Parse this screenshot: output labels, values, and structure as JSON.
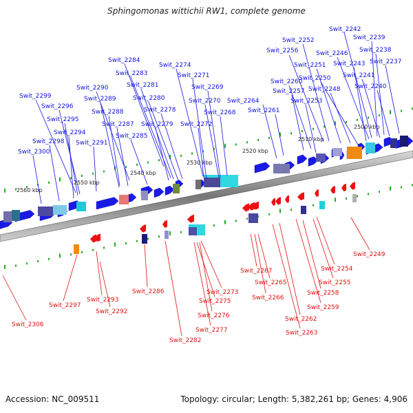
{
  "title": "Sphingomonas wittichii RW1, complete genome",
  "footer": {
    "accession": "Accession: NC_009511",
    "topology": "Topology: circular; Length: 5,382,261 bp; Genes: 4,906"
  },
  "scale_labels": [
    "2500 kbp",
    "2510 kbp",
    "2520 kbp",
    "2530 kbp",
    "2540 kbp",
    "2550 kbp",
    "2560 kbp"
  ],
  "top_labels": [
    "Swit_2242",
    "Swit_2239",
    "Swit_2252",
    "Swit_2238",
    "Swit_2256",
    "Swit_2246",
    "Swit_2237",
    "Swit_2243",
    "Swit_2251",
    "Swit_2241",
    "Swit_2250",
    "Swit_2260",
    "Swit_2240",
    "Swit_2248",
    "Swit_2257",
    "Swit_2253",
    "Swit_2264",
    "Swit_2261",
    "Swit_2284",
    "Swit_2274",
    "Swit_2283",
    "Swit_2271",
    "Swit_2281",
    "Swit_2269",
    "Swit_2290",
    "Swit_2280",
    "Swit_2270",
    "Swit_2299",
    "Swit_2289",
    "Swit_2278",
    "Swit_2268",
    "Swit_2296",
    "Swit_2288",
    "Swit_2295",
    "Swit_2287",
    "Swit_2279",
    "Swit_2272",
    "Swit_2294",
    "Swit_2285",
    "Swit_2298",
    "Swit_2291",
    "Swit_2300"
  ],
  "bottom_labels": [
    "Swit_2249",
    "Swit_2267",
    "Swit_2254",
    "Swit_2265",
    "Swit_2255",
    "Swit_2258",
    "Swit_2266",
    "Swit_2259",
    "Swit_2262",
    "Swit_2263",
    "Swit_2286",
    "Swit_2273",
    "Swit_2275",
    "Swit_2276",
    "Swit_2277",
    "Swit_2282",
    "Swit_2297",
    "Swit_2293",
    "Swit_2292",
    "Swit_2306"
  ],
  "colors": {
    "forward_gene": "#1a1ae6",
    "reverse_gene": "#ee1111",
    "forward_label": "#1010e0",
    "reverse_label": "#e01010",
    "backbone": "#888888",
    "ticks": "#22aa22"
  }
}
